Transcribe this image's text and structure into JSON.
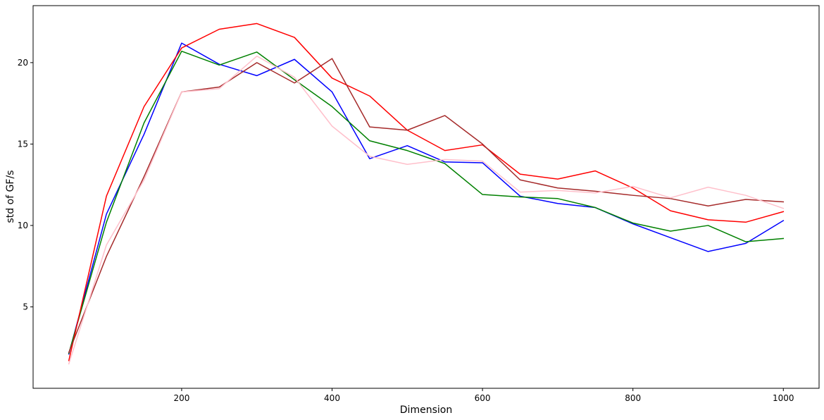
{
  "chart_data": {
    "type": "line",
    "title": "",
    "xlabel": "Dimension",
    "ylabel": "std of GF/s",
    "xlim": [
      2.5,
      1047.5
    ],
    "ylim": [
      0.0,
      23.5
    ],
    "xticks": [
      200,
      400,
      600,
      800,
      1000
    ],
    "yticks": [
      5,
      10,
      15,
      20
    ],
    "xtick_labels": [
      "200",
      "400",
      "600",
      "800",
      "1000"
    ],
    "ytick_labels": [
      "5",
      "10",
      "15",
      "20"
    ],
    "grid": false,
    "x": [
      50,
      100,
      150,
      200,
      250,
      300,
      350,
      400,
      450,
      500,
      550,
      600,
      650,
      700,
      750,
      800,
      850,
      900,
      950,
      1000
    ],
    "series": [
      {
        "color": "#0000ff",
        "values": [
          2.1,
          10.7,
          15.6,
          21.2,
          19.9,
          19.2,
          20.2,
          18.2,
          14.1,
          14.9,
          13.9,
          13.85,
          11.8,
          11.35,
          11.1,
          10.1,
          9.25,
          8.4,
          8.9,
          10.3
        ]
      },
      {
        "color": "#008000",
        "values": [
          2.15,
          10.2,
          16.3,
          20.7,
          19.85,
          20.65,
          18.95,
          17.3,
          15.2,
          14.6,
          13.8,
          11.9,
          11.75,
          11.65,
          11.1,
          10.15,
          9.65,
          10.0,
          9.0,
          9.2
        ]
      },
      {
        "color": "#ff0000",
        "values": [
          1.7,
          11.8,
          17.3,
          20.9,
          22.05,
          22.4,
          21.55,
          19.05,
          17.95,
          15.85,
          14.6,
          14.95,
          13.15,
          12.85,
          13.35,
          12.3,
          10.9,
          10.35,
          10.2,
          10.85
        ]
      },
      {
        "color": "#a52a2a",
        "values": [
          2.2,
          8.1,
          13.0,
          18.2,
          18.5,
          20.0,
          18.75,
          20.25,
          16.05,
          15.85,
          16.75,
          15.0,
          12.8,
          12.3,
          12.1,
          11.85,
          11.65,
          11.2,
          11.6,
          11.45
        ]
      },
      {
        "color": "#ffc0cb",
        "values": [
          1.5,
          8.8,
          12.8,
          18.2,
          18.4,
          20.4,
          19.1,
          16.1,
          14.25,
          13.75,
          14.05,
          13.95,
          12.05,
          12.15,
          12.0,
          12.4,
          11.7,
          12.35,
          11.85,
          11.05
        ]
      }
    ]
  }
}
